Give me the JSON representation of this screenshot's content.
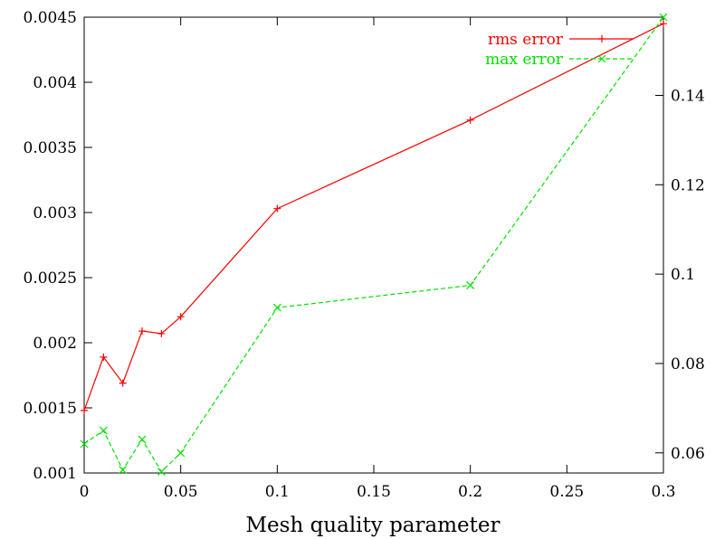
{
  "chart_data": {
    "type": "line",
    "title": "",
    "xlabel": "Mesh quality parameter",
    "ylabel": "",
    "y2label": "",
    "xlim": [
      0,
      0.3
    ],
    "ylim": [
      0.001,
      0.0045
    ],
    "y2lim": [
      0.0555,
      0.1575
    ],
    "grid": false,
    "legend_position": "top-right",
    "x_ticks": [
      "0",
      "0.05",
      "0.1",
      "0.15",
      "0.2",
      "0.25",
      "0.3"
    ],
    "y_ticks": [
      "0.001",
      "0.0015",
      "0.002",
      "0.0025",
      "0.003",
      "0.0035",
      "0.004",
      "0.0045"
    ],
    "y2_ticks": [
      "0.06",
      "0.08",
      "0.1",
      "0.12",
      "0.14"
    ],
    "series": [
      {
        "name": "rms error",
        "axis": "left",
        "color": "#ff0000",
        "marker": "plus",
        "dash": "solid",
        "x": [
          0,
          0.01,
          0.02,
          0.03,
          0.04,
          0.05,
          0.1,
          0.2,
          0.3
        ],
        "y": [
          0.00148,
          0.00189,
          0.00169,
          0.00209,
          0.00207,
          0.0022,
          0.00303,
          0.00371,
          0.00445
        ]
      },
      {
        "name": "max error",
        "axis": "right",
        "color": "#00e000",
        "marker": "cross",
        "dash": "dashed",
        "x": [
          0,
          0.01,
          0.02,
          0.03,
          0.04,
          0.05,
          0.1,
          0.2,
          0.3
        ],
        "y": [
          0.062,
          0.065,
          0.0562,
          0.063,
          0.0558,
          0.06,
          0.0925,
          0.0975,
          0.1575
        ]
      }
    ]
  }
}
